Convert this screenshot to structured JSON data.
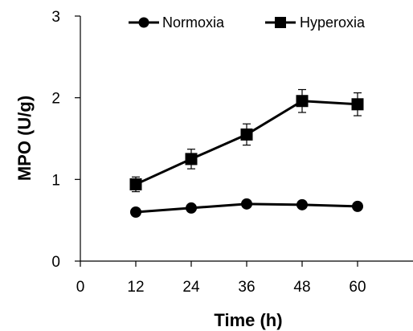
{
  "chart_data": {
    "type": "line",
    "title": "",
    "xlabel": "Time (h)",
    "ylabel": "MPO (U/g)",
    "x": [
      12,
      24,
      36,
      48,
      60
    ],
    "xlim": [
      0,
      72
    ],
    "ylim": [
      0,
      3
    ],
    "xticks": [
      0,
      12,
      24,
      36,
      48,
      60
    ],
    "yticks": [
      0,
      1,
      2,
      3
    ],
    "grid": false,
    "legend_position": "top",
    "series": [
      {
        "name": "Normoxia",
        "marker": "circle",
        "color": "#000000",
        "values": [
          0.6,
          0.65,
          0.7,
          0.69,
          0.67
        ],
        "errors": [
          0.03,
          0.03,
          0.03,
          0.03,
          0.03
        ]
      },
      {
        "name": "Hyperoxia",
        "marker": "square",
        "color": "#000000",
        "values": [
          0.94,
          1.25,
          1.55,
          1.96,
          1.92
        ],
        "errors": [
          0.09,
          0.12,
          0.13,
          0.14,
          0.14
        ]
      }
    ]
  }
}
